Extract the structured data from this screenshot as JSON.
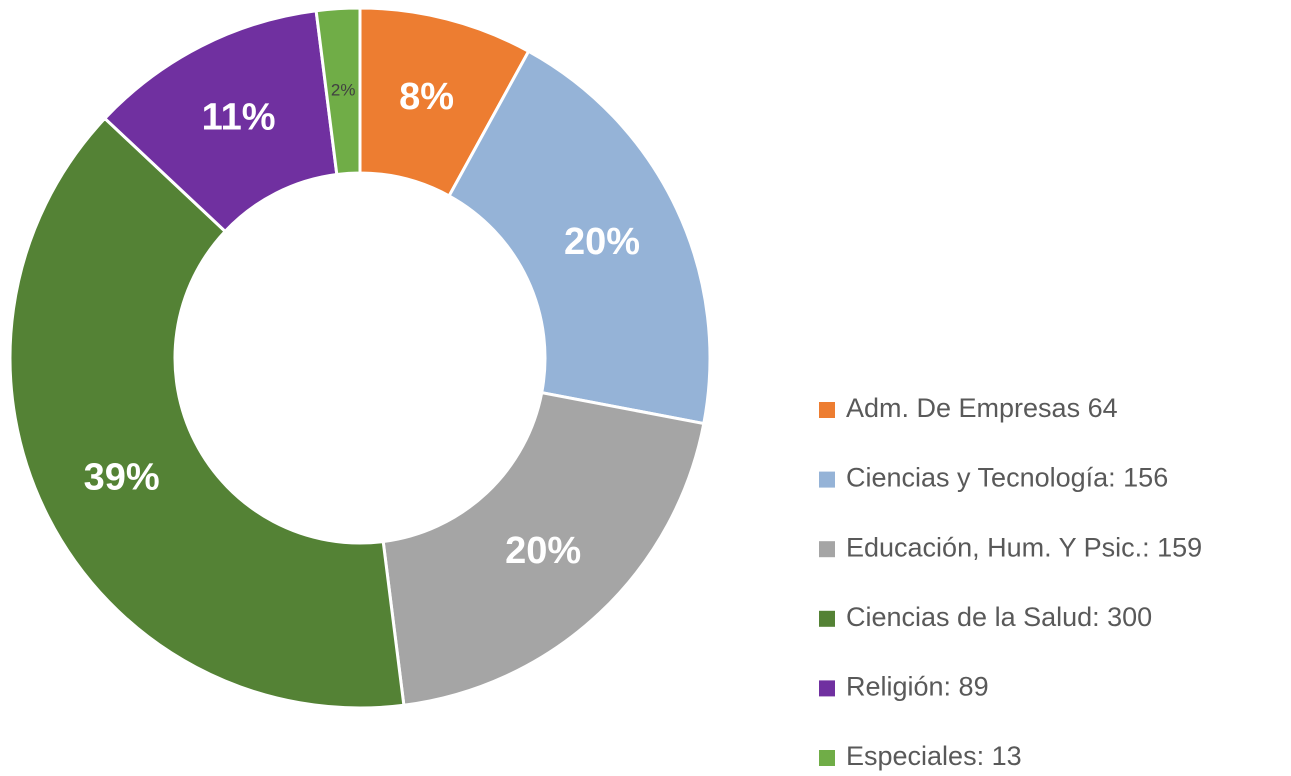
{
  "chart_data": {
    "type": "donut",
    "categories": [
      "Adm. De Empresas 64",
      "Ciencias y Tecnología: 156",
      "Educación, Hum. Y Psic.: 159",
      "Ciencias de la Salud: 300",
      "Religión: 89",
      "Especiales: 13"
    ],
    "values": [
      8,
      20,
      20,
      39,
      11,
      2
    ],
    "value_labels": [
      "8%",
      "20%",
      "20%",
      "39%",
      "11%",
      "2%"
    ],
    "colors": [
      "#ed7d31",
      "#95b3d7",
      "#a5a5a5",
      "#548235",
      "#7030a0",
      "#70ad47"
    ],
    "legend": "right"
  }
}
